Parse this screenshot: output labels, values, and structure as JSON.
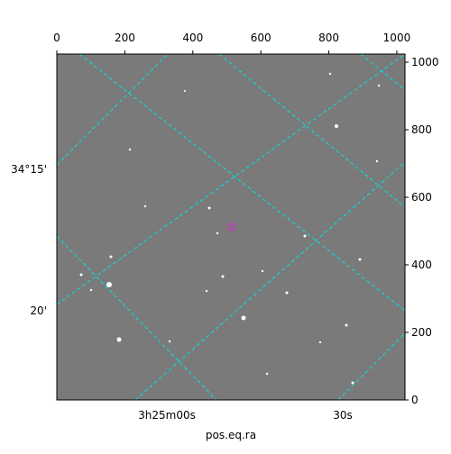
{
  "chart_data": {
    "type": "image",
    "xlabel": "pos.eq.ra",
    "xlim": [
      0,
      1024
    ],
    "ylim": [
      0,
      1024
    ],
    "xticks": [
      0,
      200,
      400,
      600,
      800,
      1000
    ],
    "yticks": [
      0,
      200,
      400,
      600,
      800,
      1000
    ],
    "ra_labels": [
      "3h25m00s",
      "30s"
    ],
    "dec_labels": [
      "34°15'",
      "20'"
    ],
    "marker": {
      "x": 514,
      "y": 512,
      "color": "#cc33cc"
    }
  }
}
